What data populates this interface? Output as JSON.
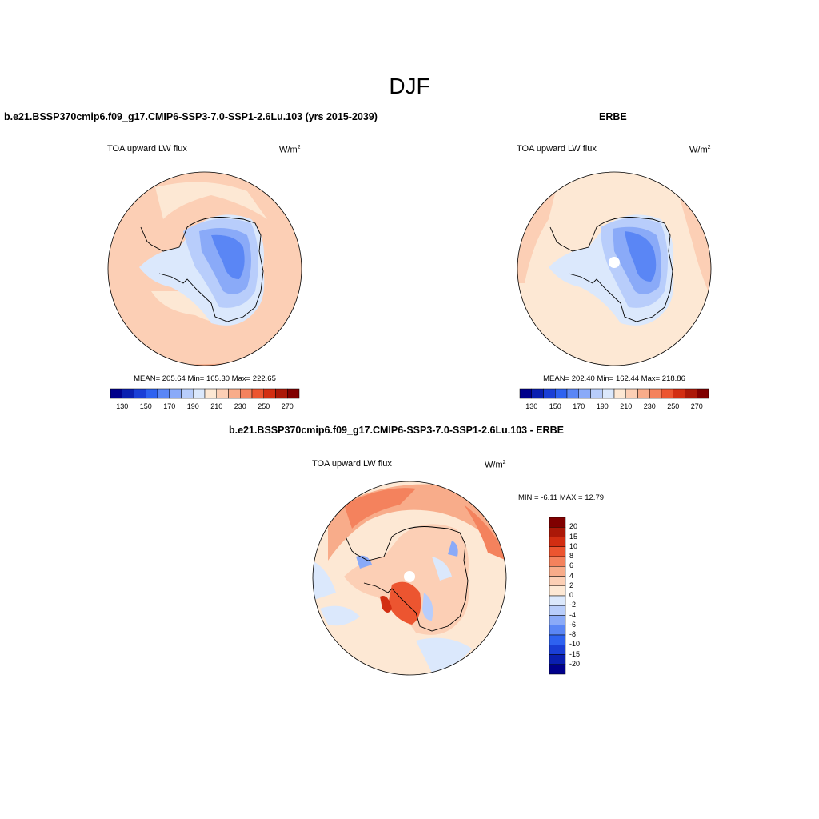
{
  "figure": {
    "title": "DJF"
  },
  "panels": {
    "model": {
      "title": "b.e21.BSSP370cmip6.f09_g17.CMIP6-SSP3-7.0-SSP1-2.6Lu.103 (yrs 2015-2039)",
      "variable": "TOA upward LW flux",
      "units_base": "W/m",
      "units_exp": "2",
      "stats": "MEAN= 205.64  Min= 165.30  Max= 222.65"
    },
    "obs": {
      "title": "ERBE",
      "variable": "TOA upward LW flux",
      "units_base": "W/m",
      "units_exp": "2",
      "stats": "MEAN= 202.40  Min= 162.44  Max= 218.86"
    },
    "diff": {
      "title": "b.e21.BSSP370cmip6.f09_g17.CMIP6-SSP3-7.0-SSP1-2.6Lu.103 - ERBE",
      "variable": "TOA upward LW flux",
      "units_base": "W/m",
      "units_exp": "2",
      "stats": "MIN =  -6.11 MAX =  12.79"
    }
  },
  "colorbars": {
    "absolute": {
      "colors": [
        "#00008b",
        "#0a1fb0",
        "#1a3fd6",
        "#2e62f0",
        "#5a86f5",
        "#8aaaf8",
        "#b8cdfb",
        "#dbe8fc",
        "#fde8d4",
        "#fccfb5",
        "#f8ac8a",
        "#f4825d",
        "#ec5530",
        "#d22e12",
        "#ab1808",
        "#800000"
      ],
      "tick_labels": [
        "130",
        "150",
        "170",
        "190",
        "210",
        "230",
        "250",
        "270"
      ]
    },
    "difference": {
      "colors": [
        "#800000",
        "#ab1808",
        "#d22e12",
        "#ec5530",
        "#f4825d",
        "#f8ac8a",
        "#fccfb5",
        "#fde8d4",
        "#dbe8fc",
        "#b8cdfb",
        "#8aaaf8",
        "#5a86f5",
        "#2e62f0",
        "#1a3fd6",
        "#0a1fb0",
        "#00008b"
      ],
      "tick_labels": [
        "20",
        "15",
        "10",
        "8",
        "6",
        "4",
        "2",
        "0",
        "-2",
        "-4",
        "-6",
        "-8",
        "-10",
        "-15",
        "-20"
      ]
    }
  }
}
